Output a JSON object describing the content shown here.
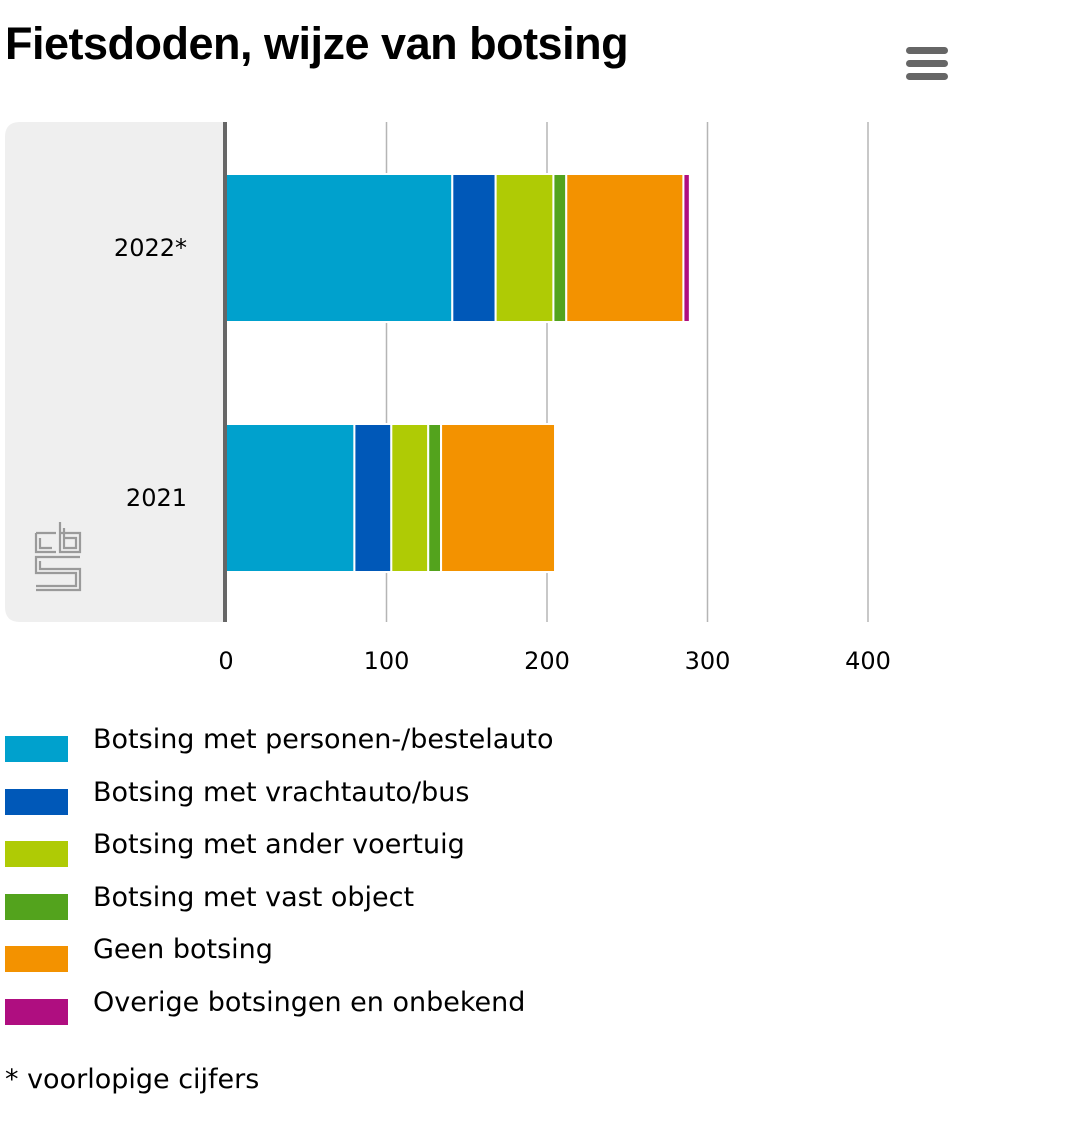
{
  "chart_data": {
    "type": "bar",
    "orientation": "horizontal",
    "stacked": true,
    "title": "Fietsdoden, wijze van botsing",
    "categories": [
      "2022*",
      "2021"
    ],
    "series": [
      {
        "name": "Botsing met personen-/bestelauto",
        "color": "#00a1cd",
        "values": [
          141,
          80
        ]
      },
      {
        "name": "Botsing met vrachtauto/bus",
        "color": "#0058b8",
        "values": [
          27,
          23
        ]
      },
      {
        "name": "Botsing met ander voertuig",
        "color": "#afcb05",
        "values": [
          36,
          23
        ]
      },
      {
        "name": "Botsing met vast object",
        "color": "#53a31d",
        "values": [
          8,
          8
        ]
      },
      {
        "name": "Geen botsing",
        "color": "#f39200",
        "values": [
          73,
          71
        ]
      },
      {
        "name": "Overige botsingen en onbekend",
        "color": "#af0e80",
        "values": [
          4,
          0
        ]
      }
    ],
    "xlim": [
      0,
      400
    ],
    "xticks": [
      "0",
      "100",
      "200",
      "300",
      "400"
    ],
    "xlabel": "",
    "ylabel": "",
    "grid": true,
    "legend_position": "bottom",
    "footnote": "* voorlopige cijfers"
  }
}
